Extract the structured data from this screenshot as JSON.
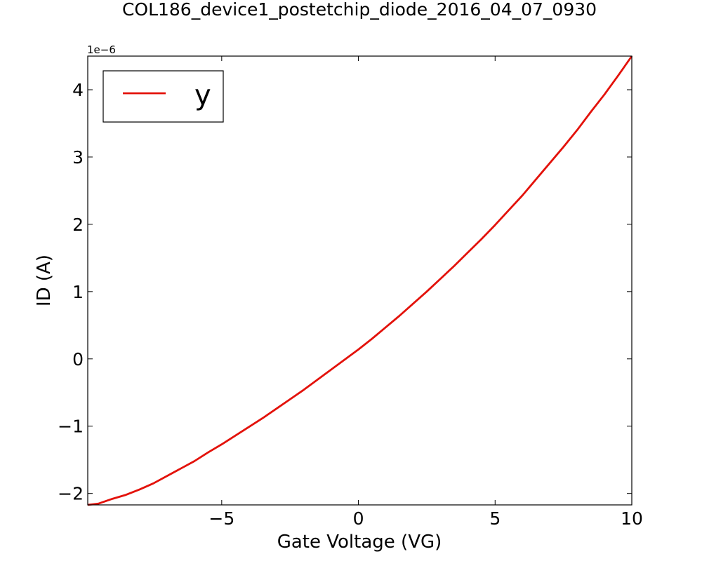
{
  "chart_data": {
    "type": "line",
    "title": "COL186_device1_postetchip_diode_2016_04_07_0930",
    "xlabel": "Gate Voltage (VG)",
    "ylabel": "ID (A)",
    "y_offset_label": "1e−6",
    "y_scale": 1e-06,
    "xlim": [
      -9.9,
      10
    ],
    "ylim": [
      -2.17,
      4.5
    ],
    "x_ticks": [
      -5,
      0,
      5,
      10
    ],
    "x_tick_labels": [
      "−5",
      "0",
      "5",
      "10"
    ],
    "y_ticks": [
      -2,
      -1,
      0,
      1,
      2,
      3,
      4
    ],
    "y_tick_labels": [
      "−2",
      "−1",
      "0",
      "1",
      "2",
      "3",
      "4"
    ],
    "grid": false,
    "legend_position": "upper-left",
    "series": [
      {
        "name": "y",
        "color": "#e3120b",
        "x": [
          -9.9,
          -9.5,
          -9,
          -8.5,
          -8,
          -7.5,
          -7,
          -6.5,
          -6,
          -5.5,
          -5,
          -4.5,
          -4,
          -3.5,
          -3,
          -2.5,
          -2,
          -1.5,
          -1,
          -0.5,
          0,
          0.5,
          1,
          1.5,
          2,
          2.5,
          3,
          3.5,
          4,
          4.5,
          5,
          5.5,
          6,
          6.5,
          7,
          7.5,
          8,
          8.5,
          9,
          9.5,
          10
        ],
        "y": [
          -2.17e-06,
          -2.15e-06,
          -2.08e-06,
          -2.02e-06,
          -1.94e-06,
          -1.85e-06,
          -1.74e-06,
          -1.63e-06,
          -1.52e-06,
          -1.39e-06,
          -1.27e-06,
          -1.14e-06,
          -1.01e-06,
          -8.8e-07,
          -7.4e-07,
          -6e-07,
          -4.6e-07,
          -3.1e-07,
          -1.6e-07,
          -1e-08,
          1.4e-07,
          3e-07,
          4.7e-07,
          6.4e-07,
          8.2e-07,
          1e-06,
          1.19e-06,
          1.38e-06,
          1.58e-06,
          1.78e-06,
          1.99e-06,
          2.21e-06,
          2.43e-06,
          2.67e-06,
          2.91e-06,
          3.15e-06,
          3.4e-06,
          3.67e-06,
          3.93e-06,
          4.21e-06,
          4.5e-06
        ]
      }
    ]
  }
}
